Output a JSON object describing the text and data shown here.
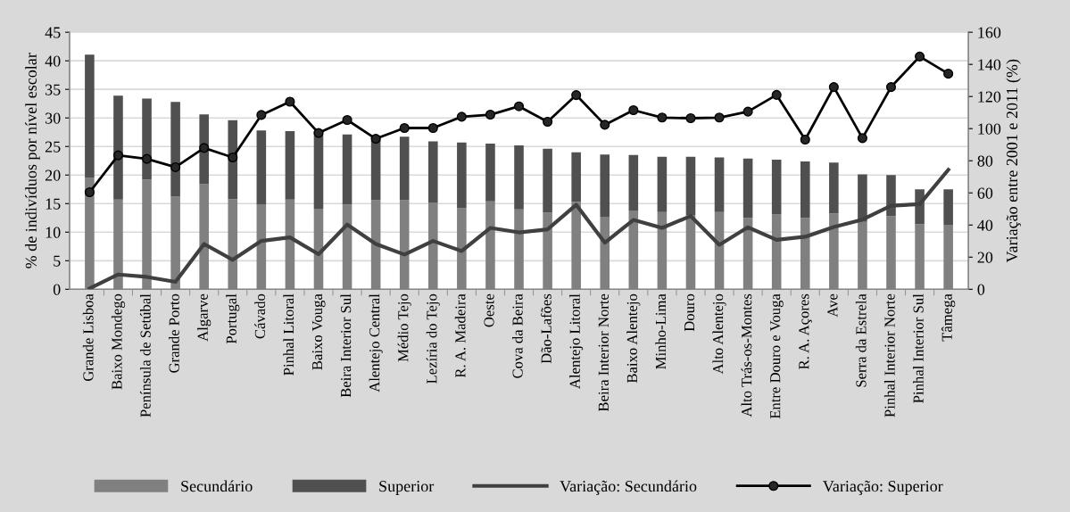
{
  "chart_data": {
    "type": "bar",
    "stacked": true,
    "ylabel": "% de indivíduos por nível escolar",
    "y2label": "Variação entre 2001 e 2011 (%)",
    "categories": [
      "Grande Lisboa",
      "Baixo Mondego",
      "Península de Setúbal",
      "Grande Porto",
      "Algarve",
      "Portugal",
      "Cávado",
      "Pinhal Litoral",
      "Baixo Vouga",
      "Beira Interior Sul",
      "Alentejo Central",
      "Médio Tejo",
      "Lezíria do Tejo",
      "R. A. Madeira",
      "Oeste",
      "Cova da Beira",
      "Dão-Lafões",
      "Alentejo Litoral",
      "Beira Interior Norte",
      "Baixo Alentejo",
      "Minho-Lima",
      "Douro",
      "Alto Alentejo",
      "Alto Trás-os-Montes",
      "Entre Douro e Vouga",
      "R. A. Açores",
      "Ave",
      "Serra da Estrela",
      "Pinhal Interior Norte",
      "Pinhal Interior Sul",
      "Tâmega"
    ],
    "series": [
      {
        "name": "Secundário",
        "color": "#808080",
        "values": [
          19.5,
          15.7,
          19.2,
          16.2,
          18.4,
          15.8,
          14.9,
          15.7,
          14.1,
          14.8,
          15.6,
          15.6,
          15.2,
          14.2,
          15.4,
          14.0,
          13.4,
          15.3,
          12.7,
          13.8,
          13.5,
          13.0,
          13.5,
          12.5,
          13.1,
          12.5,
          13.3,
          11.8,
          12.8,
          11.4,
          11.3
        ]
      },
      {
        "name": "Superior",
        "color": "#505050",
        "values": [
          21.6,
          18.2,
          14.2,
          16.6,
          12.2,
          13.8,
          12.9,
          12.0,
          13.6,
          12.3,
          11.3,
          11.1,
          10.7,
          11.5,
          10.1,
          11.2,
          11.2,
          8.7,
          10.9,
          9.7,
          9.7,
          10.2,
          9.6,
          10.4,
          9.6,
          9.9,
          8.9,
          8.3,
          7.2,
          6.1,
          6.2
        ]
      },
      {
        "name": "Variação: Secundário",
        "type": "line",
        "axis": "y2",
        "color": "#404040",
        "marker": "none",
        "values": [
          0.5,
          9.2,
          7.7,
          4.6,
          28.2,
          18.3,
          30.1,
          32.3,
          21.8,
          40.3,
          28.2,
          21.6,
          30.1,
          23.8,
          38.2,
          35.4,
          37.3,
          52.6,
          29.0,
          43.2,
          38.2,
          45.6,
          27.7,
          38.6,
          30.8,
          32.7,
          38.8,
          43.4,
          52.0,
          53.0,
          74.4
        ]
      },
      {
        "name": "Variação: Superior",
        "type": "line",
        "axis": "y2",
        "color": "#000000",
        "marker": "circle",
        "values": [
          60.4,
          83.4,
          81.2,
          76.0,
          88.0,
          82.1,
          108.5,
          116.8,
          97.3,
          105.4,
          93.7,
          100.4,
          100.4,
          107.4,
          108.7,
          113.9,
          104.3,
          120.9,
          102.4,
          111.5,
          106.9,
          106.5,
          106.9,
          110.6,
          121.0,
          93.2,
          125.9,
          94.1,
          125.9,
          144.9,
          134.2
        ]
      }
    ],
    "ylim": [
      0,
      45
    ],
    "yticks": [
      0,
      5,
      10,
      15,
      20,
      25,
      30,
      35,
      40,
      45
    ],
    "y2lim": [
      0,
      160
    ],
    "y2ticks": [
      0,
      20,
      40,
      60,
      80,
      100,
      120,
      140,
      160
    ],
    "grid": "y",
    "legend": "bottom"
  }
}
